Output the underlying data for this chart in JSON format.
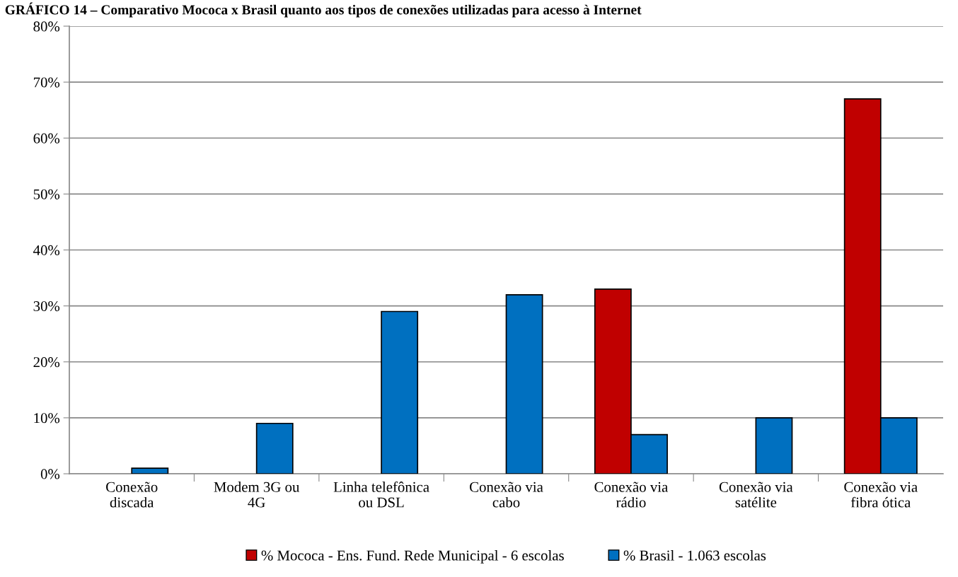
{
  "chart_data": {
    "type": "bar",
    "title": "GRÁFICO 14 – Comparativo Mococa x Brasil quanto aos tipos de conexões utilizadas para acesso à Internet",
    "categories": [
      "Conexão\ndiscada",
      "Modem 3G ou\n4G",
      "Linha telefônica\nou DSL",
      "Conexão via\ncabo",
      "Conexão via\nrádio",
      "Conexão via\nsatélite",
      "Conexão via\nfibra ótica"
    ],
    "series": [
      {
        "name": "% Mococa - Ens. Fund. Rede Municipal - 6 escolas",
        "color": "#c00000",
        "values": [
          null,
          null,
          null,
          null,
          33,
          null,
          67
        ]
      },
      {
        "name": "% Brasil - 1.063 escolas",
        "color": "#0070c0",
        "values": [
          1,
          9,
          29,
          32,
          7,
          10,
          10
        ]
      }
    ],
    "ylim": [
      0,
      80
    ],
    "yticks": [
      {
        "value": 0,
        "label": "0%"
      },
      {
        "value": 10,
        "label": "10%"
      },
      {
        "value": 20,
        "label": "20%"
      },
      {
        "value": 30,
        "label": "30%"
      },
      {
        "value": 40,
        "label": "40%"
      },
      {
        "value": 50,
        "label": "50%"
      },
      {
        "value": 60,
        "label": "60%"
      },
      {
        "value": 70,
        "label": "70%"
      },
      {
        "value": 80,
        "label": "80%"
      }
    ],
    "grid": "y",
    "legend": "bottom"
  }
}
